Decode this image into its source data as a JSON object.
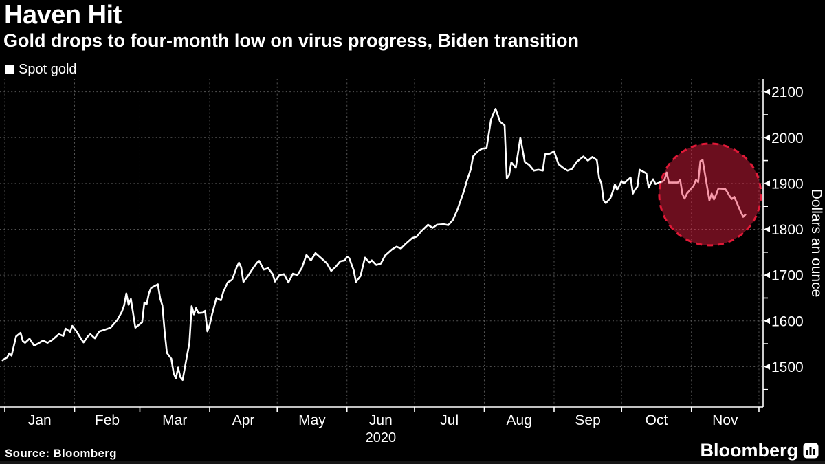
{
  "header": {
    "title": "Haven Hit",
    "subtitle": "Gold drops to four-month low on virus progress, Biden transition"
  },
  "legend": {
    "label": "Spot gold",
    "marker_color": "#ffffff"
  },
  "footer": {
    "source": "Source: Bloomberg",
    "brand": "Bloomberg"
  },
  "colors": {
    "background": "#000000",
    "text": "#ffffff",
    "grid": "#565656",
    "line": "#ffffff",
    "highlight_fill": "rgba(238,32,66,0.45)",
    "highlight_stroke": "#e01937"
  },
  "chart_data": {
    "type": "line",
    "title": "Haven Hit",
    "subtitle": "Gold drops to four-month low on virus progress, Biden transition",
    "legend_position": "top-left",
    "grid": "dotted",
    "x_axis": {
      "year_label": "2020",
      "year_under_month": "Jun",
      "month_labels": [
        "Jan",
        "Feb",
        "Mar",
        "Apr",
        "May",
        "Jun",
        "Jul",
        "Aug",
        "Sep",
        "Oct",
        "Nov"
      ],
      "month_boundaries_day": [
        0,
        31,
        60,
        91,
        121,
        152,
        182,
        213,
        244,
        274,
        305,
        335
      ],
      "xlim_days": [
        -2.14,
        336.84
      ]
    },
    "y_axis": {
      "title": "Dollars an ounce",
      "side": "right",
      "ticks": [
        1500,
        1600,
        1700,
        1800,
        1900,
        2000,
        2100
      ],
      "minor_tick_step": 50,
      "ylim": [
        1412,
        2128
      ]
    },
    "series": [
      {
        "name": "Spot gold",
        "points_day_value": [
          [
            -1,
            1514
          ],
          [
            0,
            1517
          ],
          [
            1,
            1520
          ],
          [
            2,
            1529
          ],
          [
            3,
            1524
          ],
          [
            5,
            1566
          ],
          [
            7,
            1574
          ],
          [
            8,
            1556
          ],
          [
            9,
            1552
          ],
          [
            11,
            1561
          ],
          [
            13,
            1546
          ],
          [
            15,
            1551
          ],
          [
            17,
            1557
          ],
          [
            19,
            1552
          ],
          [
            21,
            1558
          ],
          [
            24,
            1571
          ],
          [
            26,
            1567
          ],
          [
            27,
            1583
          ],
          [
            29,
            1576
          ],
          [
            30,
            1589
          ],
          [
            32,
            1576
          ],
          [
            34,
            1560
          ],
          [
            35,
            1553
          ],
          [
            37,
            1567
          ],
          [
            38,
            1571
          ],
          [
            40,
            1562
          ],
          [
            42,
            1577
          ],
          [
            44,
            1580
          ],
          [
            47,
            1585
          ],
          [
            50,
            1602
          ],
          [
            52,
            1620
          ],
          [
            53,
            1634
          ],
          [
            54,
            1660
          ],
          [
            55,
            1635
          ],
          [
            56,
            1648
          ],
          [
            58,
            1585
          ],
          [
            61,
            1597
          ],
          [
            62,
            1640
          ],
          [
            63,
            1636
          ],
          [
            64,
            1660
          ],
          [
            65,
            1672
          ],
          [
            68,
            1680
          ],
          [
            69,
            1649
          ],
          [
            70,
            1634
          ],
          [
            71,
            1577
          ],
          [
            72,
            1530
          ],
          [
            74,
            1517
          ],
          [
            75,
            1486
          ],
          [
            76,
            1474
          ],
          [
            77,
            1498
          ],
          [
            78,
            1477
          ],
          [
            79,
            1471
          ],
          [
            81,
            1525
          ],
          [
            82,
            1551
          ],
          [
            83,
            1632
          ],
          [
            84,
            1614
          ],
          [
            85,
            1628
          ],
          [
            86,
            1617
          ],
          [
            88,
            1618
          ],
          [
            89,
            1622
          ],
          [
            90,
            1577
          ],
          [
            91,
            1591
          ],
          [
            92,
            1613
          ],
          [
            94,
            1650
          ],
          [
            96,
            1645
          ],
          [
            97,
            1662
          ],
          [
            99,
            1684
          ],
          [
            101,
            1690
          ],
          [
            103,
            1717
          ],
          [
            104,
            1727
          ],
          [
            105,
            1717
          ],
          [
            106,
            1685
          ],
          [
            108,
            1698
          ],
          [
            110,
            1713
          ],
          [
            112,
            1727
          ],
          [
            113,
            1731
          ],
          [
            115,
            1712
          ],
          [
            117,
            1715
          ],
          [
            119,
            1702
          ],
          [
            120,
            1686
          ],
          [
            122,
            1700
          ],
          [
            124,
            1702
          ],
          [
            126,
            1684
          ],
          [
            128,
            1703
          ],
          [
            130,
            1700
          ],
          [
            132,
            1716
          ],
          [
            134,
            1744
          ],
          [
            136,
            1732
          ],
          [
            138,
            1748
          ],
          [
            141,
            1735
          ],
          [
            143,
            1726
          ],
          [
            145,
            1709
          ],
          [
            147,
            1718
          ],
          [
            149,
            1730
          ],
          [
            151,
            1732
          ],
          [
            152,
            1740
          ],
          [
            153,
            1737
          ],
          [
            155,
            1710
          ],
          [
            156,
            1685
          ],
          [
            158,
            1698
          ],
          [
            160,
            1738
          ],
          [
            162,
            1727
          ],
          [
            163,
            1732
          ],
          [
            165,
            1722
          ],
          [
            167,
            1725
          ],
          [
            169,
            1743
          ],
          [
            172,
            1756
          ],
          [
            174,
            1762
          ],
          [
            176,
            1758
          ],
          [
            178,
            1768
          ],
          [
            181,
            1781
          ],
          [
            183,
            1784
          ],
          [
            185,
            1796
          ],
          [
            188,
            1810
          ],
          [
            190,
            1803
          ],
          [
            192,
            1810
          ],
          [
            195,
            1811
          ],
          [
            197,
            1809
          ],
          [
            199,
            1820
          ],
          [
            201,
            1842
          ],
          [
            204,
            1884
          ],
          [
            205,
            1902
          ],
          [
            207,
            1931
          ],
          [
            208,
            1959
          ],
          [
            210,
            1970
          ],
          [
            212,
            1976
          ],
          [
            214,
            1977
          ],
          [
            216,
            2040
          ],
          [
            218,
            2063
          ],
          [
            220,
            2035
          ],
          [
            222,
            2027
          ],
          [
            223,
            1911
          ],
          [
            224,
            1918
          ],
          [
            225,
            1946
          ],
          [
            227,
            1934
          ],
          [
            229,
            2000
          ],
          [
            231,
            1947
          ],
          [
            233,
            1940
          ],
          [
            235,
            1928
          ],
          [
            237,
            1930
          ],
          [
            239,
            1928
          ],
          [
            240,
            1964
          ],
          [
            242,
            1965
          ],
          [
            244,
            1970
          ],
          [
            246,
            1942
          ],
          [
            248,
            1934
          ],
          [
            250,
            1928
          ],
          [
            252,
            1932
          ],
          [
            254,
            1947
          ],
          [
            257,
            1959
          ],
          [
            259,
            1950
          ],
          [
            261,
            1958
          ],
          [
            263,
            1951
          ],
          [
            264,
            1912
          ],
          [
            265,
            1900
          ],
          [
            266,
            1863
          ],
          [
            267,
            1857
          ],
          [
            269,
            1868
          ],
          [
            270,
            1881
          ],
          [
            271,
            1898
          ],
          [
            272,
            1886
          ],
          [
            274,
            1905
          ],
          [
            275,
            1900
          ],
          [
            278,
            1913
          ],
          [
            279,
            1878
          ],
          [
            280,
            1887
          ],
          [
            281,
            1893
          ],
          [
            282,
            1930
          ],
          [
            285,
            1922
          ],
          [
            286,
            1891
          ],
          [
            287,
            1901
          ],
          [
            288,
            1909
          ],
          [
            289,
            1899
          ],
          [
            292,
            1904
          ],
          [
            293,
            1907
          ],
          [
            294,
            1924
          ],
          [
            295,
            1902
          ],
          [
            296,
            1902
          ],
          [
            299,
            1902
          ],
          [
            300,
            1908
          ],
          [
            301,
            1877
          ],
          [
            302,
            1867
          ],
          [
            303,
            1878
          ],
          [
            306,
            1895
          ],
          [
            307,
            1908
          ],
          [
            308,
            1903
          ],
          [
            309,
            1949
          ],
          [
            310,
            1951
          ],
          [
            313,
            1863
          ],
          [
            314,
            1878
          ],
          [
            315,
            1865
          ],
          [
            316,
            1876
          ],
          [
            317,
            1889
          ],
          [
            320,
            1888
          ],
          [
            321,
            1881
          ],
          [
            322,
            1872
          ],
          [
            323,
            1866
          ],
          [
            324,
            1871
          ],
          [
            327,
            1837
          ],
          [
            328,
            1827
          ],
          [
            329,
            1832
          ]
        ]
      }
    ],
    "highlight": {
      "shape": "dashed-circle",
      "center_day": 313.3,
      "center_value": 1876,
      "radius_px": 74
    }
  }
}
